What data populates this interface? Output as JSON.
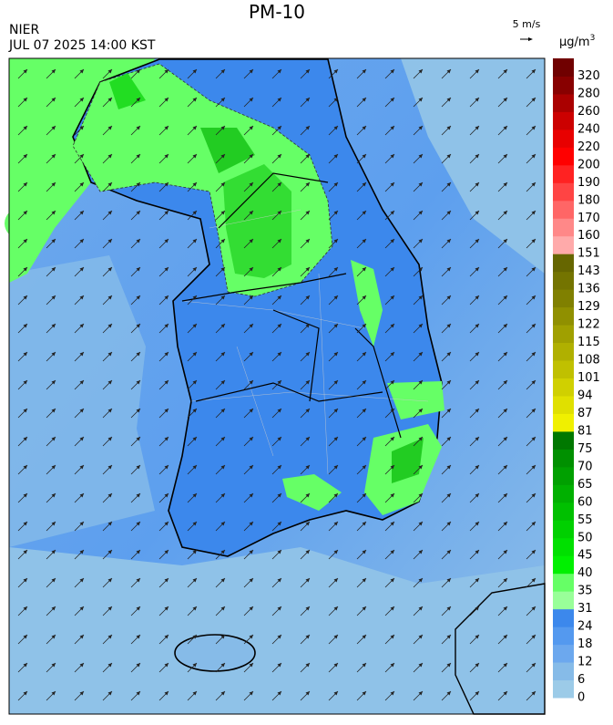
{
  "header": {
    "title": "PM-10",
    "agency": "NIER",
    "datetime": "JUL 07 2025 14:00 KST"
  },
  "wind_reference": {
    "label": "5 m/s"
  },
  "legend": {
    "unit": "μg/m",
    "unit_exponent": "3",
    "levels": [
      {
        "label": "0",
        "color": "#9ccbe8"
      },
      {
        "label": "6",
        "color": "#86bbe8"
      },
      {
        "label": "12",
        "color": "#6ca8ee"
      },
      {
        "label": "18",
        "color": "#5499ef"
      },
      {
        "label": "24",
        "color": "#3c88ec"
      },
      {
        "label": "31",
        "color": "#99ff99"
      },
      {
        "label": "35",
        "color": "#66ff66"
      },
      {
        "label": "40",
        "color": "#00f000"
      },
      {
        "label": "45",
        "color": "#00e000"
      },
      {
        "label": "50",
        "color": "#00d000"
      },
      {
        "label": "55",
        "color": "#00c000"
      },
      {
        "label": "60",
        "color": "#00b000"
      },
      {
        "label": "65",
        "color": "#00a000"
      },
      {
        "label": "70",
        "color": "#009000"
      },
      {
        "label": "75",
        "color": "#007800"
      },
      {
        "label": "81",
        "color": "#f0f000"
      },
      {
        "label": "87",
        "color": "#e0e000"
      },
      {
        "label": "94",
        "color": "#d0d000"
      },
      {
        "label": "101",
        "color": "#c0c000"
      },
      {
        "label": "108",
        "color": "#b0b000"
      },
      {
        "label": "115",
        "color": "#a0a000"
      },
      {
        "label": "122",
        "color": "#909000"
      },
      {
        "label": "129",
        "color": "#808000"
      },
      {
        "label": "136",
        "color": "#747400"
      },
      {
        "label": "143",
        "color": "#666600"
      },
      {
        "label": "151",
        "color": "#ffaaaa"
      },
      {
        "label": "160",
        "color": "#ff8888"
      },
      {
        "label": "170",
        "color": "#ff6666"
      },
      {
        "label": "180",
        "color": "#ff4444"
      },
      {
        "label": "190",
        "color": "#ff2222"
      },
      {
        "label": "200",
        "color": "#ff0000"
      },
      {
        "label": "220",
        "color": "#e80000"
      },
      {
        "label": "240",
        "color": "#cc0000"
      },
      {
        "label": "260",
        "color": "#aa0000"
      },
      {
        "label": "280",
        "color": "#880000"
      },
      {
        "label": "320",
        "color": "#700000"
      }
    ],
    "top_color": "#600000"
  }
}
